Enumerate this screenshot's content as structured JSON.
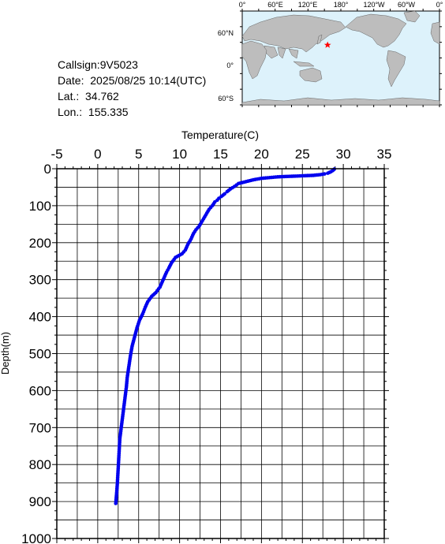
{
  "info": {
    "callsign": "Callsign:9V5023",
    "date": "Date:  2025/08/25 10:14(UTC)",
    "lat": "Lat.:  34.762",
    "lon": "Lon.:  155.335"
  },
  "map": {
    "top_labels": [
      "0°",
      "60°E",
      "120°E",
      "180°",
      "120°W",
      "60°W",
      "0°"
    ],
    "left_labels": [
      "60°N",
      "0°",
      "60°S"
    ],
    "ocean_color": "#ddf2fb",
    "land_color": "#bdbdbd",
    "marker": {
      "lat": 34.762,
      "lon": 155.335,
      "color": "#ff0000",
      "symbol": "star"
    }
  },
  "chart_data": {
    "type": "scatter",
    "title": "Temperature(C)",
    "xlabel": "Temperature(C)",
    "ylabel": "Depth(m)",
    "xlim": [
      -5,
      35
    ],
    "ylim": [
      1000,
      0
    ],
    "x_ticks": [
      "-5",
      "0",
      "5",
      "10",
      "15",
      "20",
      "25",
      "30",
      "35"
    ],
    "y_ticks": [
      "0",
      "100",
      "200",
      "300",
      "400",
      "500",
      "600",
      "700",
      "800",
      "900",
      "1000"
    ],
    "grid": true,
    "series": [
      {
        "color": "#0000ee",
        "points": [
          [
            28.9,
            1
          ],
          [
            28.8,
            3
          ],
          [
            28.7,
            5
          ],
          [
            28.5,
            8
          ],
          [
            28.3,
            10
          ],
          [
            28.1,
            12
          ],
          [
            27.7,
            14
          ],
          [
            27.2,
            16
          ],
          [
            26.3,
            18
          ],
          [
            25.2,
            19
          ],
          [
            24.2,
            20
          ],
          [
            23.0,
            21
          ],
          [
            22.0,
            22
          ],
          [
            21.0,
            24
          ],
          [
            20.0,
            26
          ],
          [
            19.0,
            30
          ],
          [
            18.1,
            35
          ],
          [
            17.2,
            40
          ],
          [
            16.7,
            48
          ],
          [
            16.2,
            55
          ],
          [
            15.8,
            62
          ],
          [
            15.5,
            68
          ],
          [
            15.1,
            75
          ],
          [
            14.8,
            80
          ],
          [
            14.6,
            85
          ],
          [
            14.3,
            90
          ],
          [
            14.0,
            100
          ],
          [
            13.6,
            110
          ],
          [
            13.2,
            125
          ],
          [
            12.8,
            140
          ],
          [
            12.4,
            155
          ],
          [
            12.0,
            165
          ],
          [
            11.7,
            175
          ],
          [
            11.4,
            190
          ],
          [
            11.0,
            205
          ],
          [
            10.7,
            220
          ],
          [
            10.3,
            230
          ],
          [
            9.5,
            240
          ],
          [
            9.0,
            255
          ],
          [
            8.7,
            268
          ],
          [
            8.4,
            280
          ],
          [
            8.0,
            300
          ],
          [
            7.6,
            320
          ],
          [
            7.1,
            335
          ],
          [
            6.6,
            345
          ],
          [
            6.1,
            360
          ],
          [
            5.8,
            375
          ],
          [
            5.5,
            392
          ],
          [
            5.1,
            410
          ],
          [
            4.8,
            430
          ],
          [
            4.5,
            455
          ],
          [
            4.2,
            480
          ],
          [
            4.0,
            505
          ],
          [
            3.8,
            535
          ],
          [
            3.6,
            565
          ],
          [
            3.5,
            590
          ],
          [
            3.3,
            625
          ],
          [
            3.1,
            660
          ],
          [
            2.9,
            695
          ],
          [
            2.7,
            730
          ],
          [
            2.6,
            770
          ],
          [
            2.5,
            810
          ],
          [
            2.4,
            850
          ],
          [
            2.3,
            880
          ],
          [
            2.2,
            905
          ]
        ]
      }
    ]
  }
}
